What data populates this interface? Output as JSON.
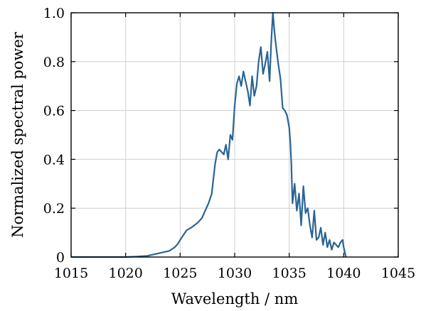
{
  "chart_data": {
    "type": "line",
    "title": "",
    "xlabel": "Wavelength / nm",
    "ylabel": "Normalized spectral power",
    "xlim": [
      1015,
      1045
    ],
    "ylim": [
      0,
      1.0
    ],
    "xticks": [
      1015,
      1020,
      1025,
      1030,
      1035,
      1040,
      1045
    ],
    "yticks": [
      0,
      0.2,
      0.4,
      0.6,
      0.8,
      1.0
    ],
    "xtick_labels": [
      "1015",
      "1020",
      "1025",
      "1030",
      "1035",
      "1040",
      "1045"
    ],
    "ytick_labels": [
      "0",
      "0.2",
      "0.4",
      "0.6",
      "0.8",
      "1.0"
    ],
    "grid": true,
    "series": [
      {
        "color": "#2a6496",
        "x": [
          1015.0,
          1018.0,
          1020.0,
          1021.0,
          1022.0,
          1022.5,
          1023.0,
          1023.5,
          1024.0,
          1024.5,
          1024.8,
          1025.0,
          1025.3,
          1025.6,
          1026.0,
          1026.3,
          1026.6,
          1027.0,
          1027.3,
          1027.6,
          1027.9,
          1028.0,
          1028.2,
          1028.4,
          1028.6,
          1028.8,
          1029.0,
          1029.2,
          1029.4,
          1029.6,
          1029.8,
          1030.0,
          1030.2,
          1030.4,
          1030.6,
          1030.8,
          1031.0,
          1031.2,
          1031.4,
          1031.6,
          1031.8,
          1032.0,
          1032.2,
          1032.4,
          1032.6,
          1032.8,
          1033.0,
          1033.2,
          1033.35,
          1033.5,
          1033.65,
          1033.8,
          1034.0,
          1034.2,
          1034.4,
          1034.6,
          1034.8,
          1035.0,
          1035.1,
          1035.2,
          1035.3,
          1035.4,
          1035.5,
          1035.7,
          1035.9,
          1036.1,
          1036.3,
          1036.5,
          1036.7,
          1036.9,
          1037.1,
          1037.3,
          1037.5,
          1037.7,
          1037.9,
          1038.1,
          1038.3,
          1038.5,
          1038.7,
          1038.9,
          1039.1,
          1039.3,
          1039.5,
          1039.7,
          1039.9,
          1040.0,
          1040.1,
          1040.2
        ],
        "y": [
          0.0,
          0.0,
          0.0,
          0.002,
          0.005,
          0.01,
          0.015,
          0.02,
          0.025,
          0.04,
          0.055,
          0.07,
          0.09,
          0.11,
          0.12,
          0.13,
          0.14,
          0.16,
          0.19,
          0.22,
          0.26,
          0.3,
          0.38,
          0.43,
          0.44,
          0.43,
          0.42,
          0.46,
          0.4,
          0.5,
          0.48,
          0.62,
          0.71,
          0.74,
          0.7,
          0.76,
          0.72,
          0.68,
          0.62,
          0.74,
          0.66,
          0.7,
          0.8,
          0.86,
          0.75,
          0.79,
          0.84,
          0.72,
          0.88,
          1.0,
          0.92,
          0.86,
          0.79,
          0.73,
          0.61,
          0.6,
          0.58,
          0.53,
          0.47,
          0.38,
          0.22,
          0.26,
          0.3,
          0.19,
          0.26,
          0.13,
          0.29,
          0.18,
          0.2,
          0.13,
          0.08,
          0.19,
          0.07,
          0.08,
          0.12,
          0.05,
          0.1,
          0.04,
          0.07,
          0.03,
          0.06,
          0.05,
          0.04,
          0.06,
          0.07,
          0.04,
          0.02,
          0.0
        ]
      }
    ]
  }
}
